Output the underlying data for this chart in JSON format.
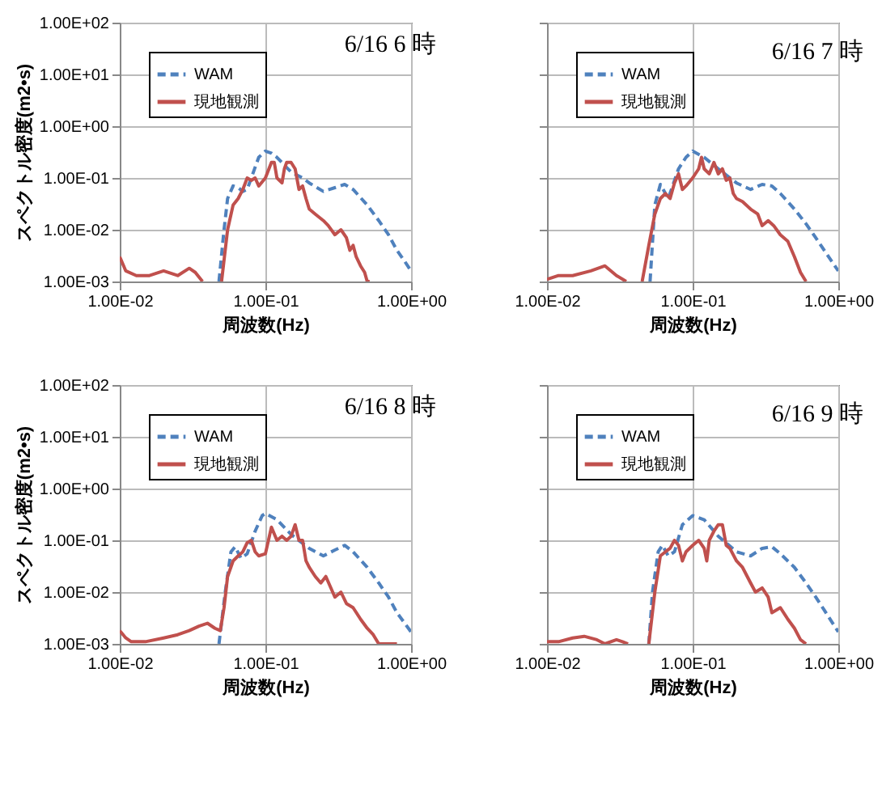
{
  "chart_data": [
    {
      "type": "line",
      "title": "6/16 6 時",
      "xlabel": "周波数(Hz)",
      "ylabel": "スペクトル密度(m2•s)",
      "log": "xy",
      "grid": true,
      "legend": "top left",
      "xlim": [
        0.01,
        1
      ],
      "ylim": [
        0.001,
        100
      ],
      "xticks": [
        {
          "value": 0.01,
          "label": "1.00E-02"
        },
        {
          "value": 0.1,
          "label": "1.00E-01"
        },
        {
          "value": 1,
          "label": "1.00E+00"
        }
      ],
      "yticks": [
        {
          "value": 0.001,
          "label": "1.00E-03"
        },
        {
          "value": 0.01,
          "label": "1.00E-02"
        },
        {
          "value": 0.1,
          "label": "1.00E-01"
        },
        {
          "value": 1,
          "label": "1.00E+00"
        },
        {
          "value": 10,
          "label": "1.00E+01"
        },
        {
          "value": 100,
          "label": "1.00E+02"
        }
      ],
      "series": [
        {
          "name": "WAM",
          "color": "#4f81bd",
          "line_style": "dashed",
          "x": [
            0.048,
            0.052,
            0.055,
            0.06,
            0.065,
            0.07,
            0.075,
            0.08,
            0.09,
            0.1,
            0.11,
            0.12,
            0.15,
            0.18,
            0.2,
            0.25,
            0.3,
            0.35,
            0.4,
            0.5,
            0.6,
            0.7,
            0.8,
            0.9,
            1
          ],
          "values": [
            0.001,
            0.01,
            0.04,
            0.07,
            0.065,
            0.055,
            0.06,
            0.1,
            0.25,
            0.33,
            0.3,
            0.25,
            0.13,
            0.1,
            0.08,
            0.055,
            0.065,
            0.075,
            0.06,
            0.03,
            0.015,
            0.008,
            0.004,
            0.0025,
            0.0016
          ]
        },
        {
          "name": "現地観測",
          "color": "#c0504d",
          "line_style": "solid",
          "x": [
            0.01,
            0.011,
            0.013,
            0.016,
            0.02,
            0.025,
            0.03,
            0.033,
            0.037,
            0.043,
            0.05,
            0.055,
            0.06,
            0.065,
            0.07,
            0.075,
            0.08,
            0.085,
            0.09,
            0.1,
            0.11,
            0.115,
            0.12,
            0.13,
            0.135,
            0.14,
            0.15,
            0.16,
            0.17,
            0.18,
            0.19,
            0.2,
            0.22,
            0.25,
            0.27,
            0.3,
            0.33,
            0.36,
            0.38,
            0.4,
            0.42,
            0.45,
            0.48,
            0.5,
            0.52
          ],
          "values": [
            0.003,
            0.0016,
            0.0013,
            0.0013,
            0.0016,
            0.0013,
            0.0018,
            0.0015,
            0.001,
            null,
            0.001,
            0.01,
            0.03,
            0.04,
            0.06,
            0.1,
            0.09,
            0.1,
            0.07,
            0.1,
            0.2,
            0.2,
            0.1,
            0.08,
            0.15,
            0.2,
            0.2,
            0.15,
            0.06,
            0.07,
            0.04,
            0.025,
            0.02,
            0.015,
            0.012,
            0.008,
            0.01,
            0.007,
            0.004,
            0.005,
            0.003,
            0.002,
            0.0015,
            0.001,
            0.001
          ]
        }
      ]
    },
    {
      "type": "line",
      "title": "6/16 7 時",
      "xlabel": "周波数(Hz)",
      "log": "xy",
      "grid": true,
      "legend": "top left",
      "tick_labels": "x",
      "xlim": [
        0.01,
        1
      ],
      "ylim": [
        0.001,
        100
      ],
      "xticks": [
        {
          "value": 0.01,
          "label": "1.00E-02"
        },
        {
          "value": 0.1,
          "label": "1.00E-01"
        },
        {
          "value": 1,
          "label": "1.00E+00"
        }
      ],
      "yticks": [
        {
          "value": 0.001,
          "label": null
        },
        {
          "value": 0.01,
          "label": null
        },
        {
          "value": 0.1,
          "label": null
        },
        {
          "value": 1,
          "label": null
        },
        {
          "value": 10,
          "label": null
        },
        {
          "value": 100,
          "label": null
        }
      ],
      "series": [
        {
          "name": "WAM",
          "color": "#4f81bd",
          "line_style": "dashed",
          "x": [
            0.051,
            0.055,
            0.06,
            0.068,
            0.08,
            0.09,
            0.1,
            0.12,
            0.15,
            0.2,
            0.25,
            0.3,
            0.35,
            0.4,
            0.5,
            0.6,
            0.7,
            0.8,
            1
          ],
          "values": [
            0.001,
            0.03,
            0.075,
            0.04,
            0.15,
            0.25,
            0.33,
            0.25,
            0.15,
            0.08,
            0.06,
            0.075,
            0.07,
            0.05,
            0.025,
            0.013,
            0.007,
            0.004,
            0.0016
          ]
        },
        {
          "name": "現地観測",
          "color": "#c0504d",
          "line_style": "solid",
          "x": [
            0.01,
            0.012,
            0.015,
            0.02,
            0.025,
            0.03,
            0.035,
            0.04,
            0.045,
            0.05,
            0.055,
            0.06,
            0.065,
            0.07,
            0.075,
            0.08,
            0.085,
            0.09,
            0.1,
            0.11,
            0.115,
            0.12,
            0.13,
            0.14,
            0.15,
            0.16,
            0.17,
            0.18,
            0.19,
            0.2,
            0.22,
            0.25,
            0.28,
            0.3,
            0.33,
            0.36,
            0.4,
            0.45,
            0.5,
            0.55,
            0.6
          ],
          "values": [
            0.0011,
            0.0013,
            0.0013,
            0.0016,
            0.002,
            0.0013,
            0.001,
            null,
            0.001,
            0.005,
            0.02,
            0.04,
            0.05,
            0.04,
            0.08,
            0.12,
            0.06,
            0.07,
            0.1,
            0.15,
            0.25,
            0.15,
            0.12,
            0.2,
            0.12,
            0.15,
            0.09,
            0.1,
            0.05,
            0.04,
            0.035,
            0.025,
            0.02,
            0.012,
            0.015,
            0.012,
            0.008,
            0.006,
            0.003,
            0.0015,
            0.001
          ]
        }
      ]
    },
    {
      "type": "line",
      "title": "6/16 8 時",
      "xlabel": "周波数(Hz)",
      "ylabel": "スペクトル密度(m2•s)",
      "log": "xy",
      "grid": true,
      "legend": "top left",
      "xlim": [
        0.01,
        1
      ],
      "ylim": [
        0.001,
        100
      ],
      "xticks": [
        {
          "value": 0.01,
          "label": "1.00E-02"
        },
        {
          "value": 0.1,
          "label": "1.00E-01"
        },
        {
          "value": 1,
          "label": "1.00E+00"
        }
      ],
      "yticks": [
        {
          "value": 0.001,
          "label": "1.00E-03"
        },
        {
          "value": 0.01,
          "label": "1.00E-02"
        },
        {
          "value": 0.1,
          "label": "1.00E-01"
        },
        {
          "value": 1,
          "label": "1.00E+00"
        },
        {
          "value": 10,
          "label": "1.00E+01"
        },
        {
          "value": 100,
          "label": "1.00E+02"
        }
      ],
      "series": [
        {
          "name": "WAM",
          "color": "#4f81bd",
          "line_style": "dashed",
          "x": [
            0.048,
            0.053,
            0.058,
            0.062,
            0.068,
            0.075,
            0.085,
            0.095,
            0.1,
            0.12,
            0.15,
            0.2,
            0.25,
            0.3,
            0.35,
            0.4,
            0.5,
            0.6,
            0.7,
            0.8,
            1
          ],
          "values": [
            0.001,
            0.01,
            0.06,
            0.075,
            0.045,
            0.055,
            0.15,
            0.3,
            0.33,
            0.25,
            0.13,
            0.07,
            0.05,
            0.065,
            0.08,
            0.06,
            0.03,
            0.015,
            0.008,
            0.004,
            0.0017
          ]
        },
        {
          "name": "現地観測",
          "color": "#c0504d",
          "line_style": "solid",
          "x": [
            0.01,
            0.011,
            0.012,
            0.015,
            0.02,
            0.025,
            0.03,
            0.035,
            0.04,
            0.045,
            0.049,
            0.052,
            0.055,
            0.06,
            0.065,
            0.07,
            0.075,
            0.08,
            0.085,
            0.09,
            0.1,
            0.11,
            0.12,
            0.13,
            0.14,
            0.15,
            0.16,
            0.17,
            0.18,
            0.19,
            0.2,
            0.22,
            0.24,
            0.26,
            0.3,
            0.33,
            0.36,
            0.4,
            0.45,
            0.5,
            0.55,
            0.6,
            0.7,
            0.8
          ],
          "values": [
            0.0018,
            0.0013,
            0.0011,
            0.0011,
            0.0013,
            0.0015,
            0.0018,
            0.0022,
            0.0025,
            0.002,
            0.0018,
            0.005,
            0.02,
            0.04,
            0.05,
            0.06,
            0.09,
            0.1,
            0.06,
            0.05,
            0.055,
            0.18,
            0.1,
            0.12,
            0.1,
            0.12,
            0.2,
            0.1,
            0.1,
            0.04,
            0.03,
            0.02,
            0.015,
            0.02,
            0.008,
            0.01,
            0.006,
            0.005,
            0.003,
            0.002,
            0.0015,
            0.001,
            0.001,
            0.001
          ]
        }
      ]
    },
    {
      "type": "line",
      "title": "6/16 9 時",
      "xlabel": "周波数(Hz)",
      "log": "xy",
      "grid": true,
      "legend": "top left",
      "tick_labels": "x",
      "xlim": [
        0.01,
        1
      ],
      "ylim": [
        0.001,
        100
      ],
      "xticks": [
        {
          "value": 0.01,
          "label": "1.00E-02"
        },
        {
          "value": 0.1,
          "label": "1.00E-01"
        },
        {
          "value": 1,
          "label": "1.00E+00"
        }
      ],
      "yticks": [
        {
          "value": 0.001,
          "label": null
        },
        {
          "value": 0.01,
          "label": null
        },
        {
          "value": 0.1,
          "label": null
        },
        {
          "value": 1,
          "label": null
        },
        {
          "value": 10,
          "label": null
        },
        {
          "value": 100,
          "label": null
        }
      ],
      "series": [
        {
          "name": "WAM",
          "color": "#4f81bd",
          "line_style": "dashed",
          "x": [
            0.05,
            0.053,
            0.058,
            0.062,
            0.068,
            0.075,
            0.085,
            0.1,
            0.12,
            0.15,
            0.2,
            0.25,
            0.3,
            0.35,
            0.4,
            0.5,
            0.6,
            0.7,
            0.8,
            1
          ],
          "values": [
            0.001,
            0.01,
            0.06,
            0.08,
            0.05,
            0.06,
            0.2,
            0.3,
            0.25,
            0.12,
            0.06,
            0.05,
            0.07,
            0.075,
            0.055,
            0.03,
            0.015,
            0.008,
            0.0045,
            0.0017
          ]
        },
        {
          "name": "現地観測",
          "color": "#c0504d",
          "line_style": "solid",
          "x": [
            0.01,
            0.012,
            0.015,
            0.018,
            0.022,
            0.025,
            0.03,
            0.033,
            0.036,
            0.043,
            0.05,
            0.055,
            0.06,
            0.065,
            0.07,
            0.075,
            0.08,
            0.085,
            0.09,
            0.1,
            0.11,
            0.12,
            0.125,
            0.13,
            0.14,
            0.15,
            0.16,
            0.17,
            0.18,
            0.2,
            0.22,
            0.25,
            0.27,
            0.3,
            0.33,
            0.35,
            0.4,
            0.45,
            0.5,
            0.55,
            0.6
          ],
          "values": [
            0.0011,
            0.0011,
            0.0013,
            0.0014,
            0.0012,
            0.001,
            0.0012,
            0.0011,
            0.001,
            null,
            0.001,
            0.01,
            0.05,
            0.06,
            0.07,
            0.1,
            0.08,
            0.04,
            0.06,
            0.08,
            0.1,
            0.07,
            0.04,
            0.1,
            0.15,
            0.2,
            0.2,
            0.08,
            0.07,
            0.04,
            0.03,
            0.015,
            0.01,
            0.012,
            0.008,
            0.004,
            0.005,
            0.003,
            0.002,
            0.0012,
            0.001
          ]
        }
      ]
    }
  ]
}
